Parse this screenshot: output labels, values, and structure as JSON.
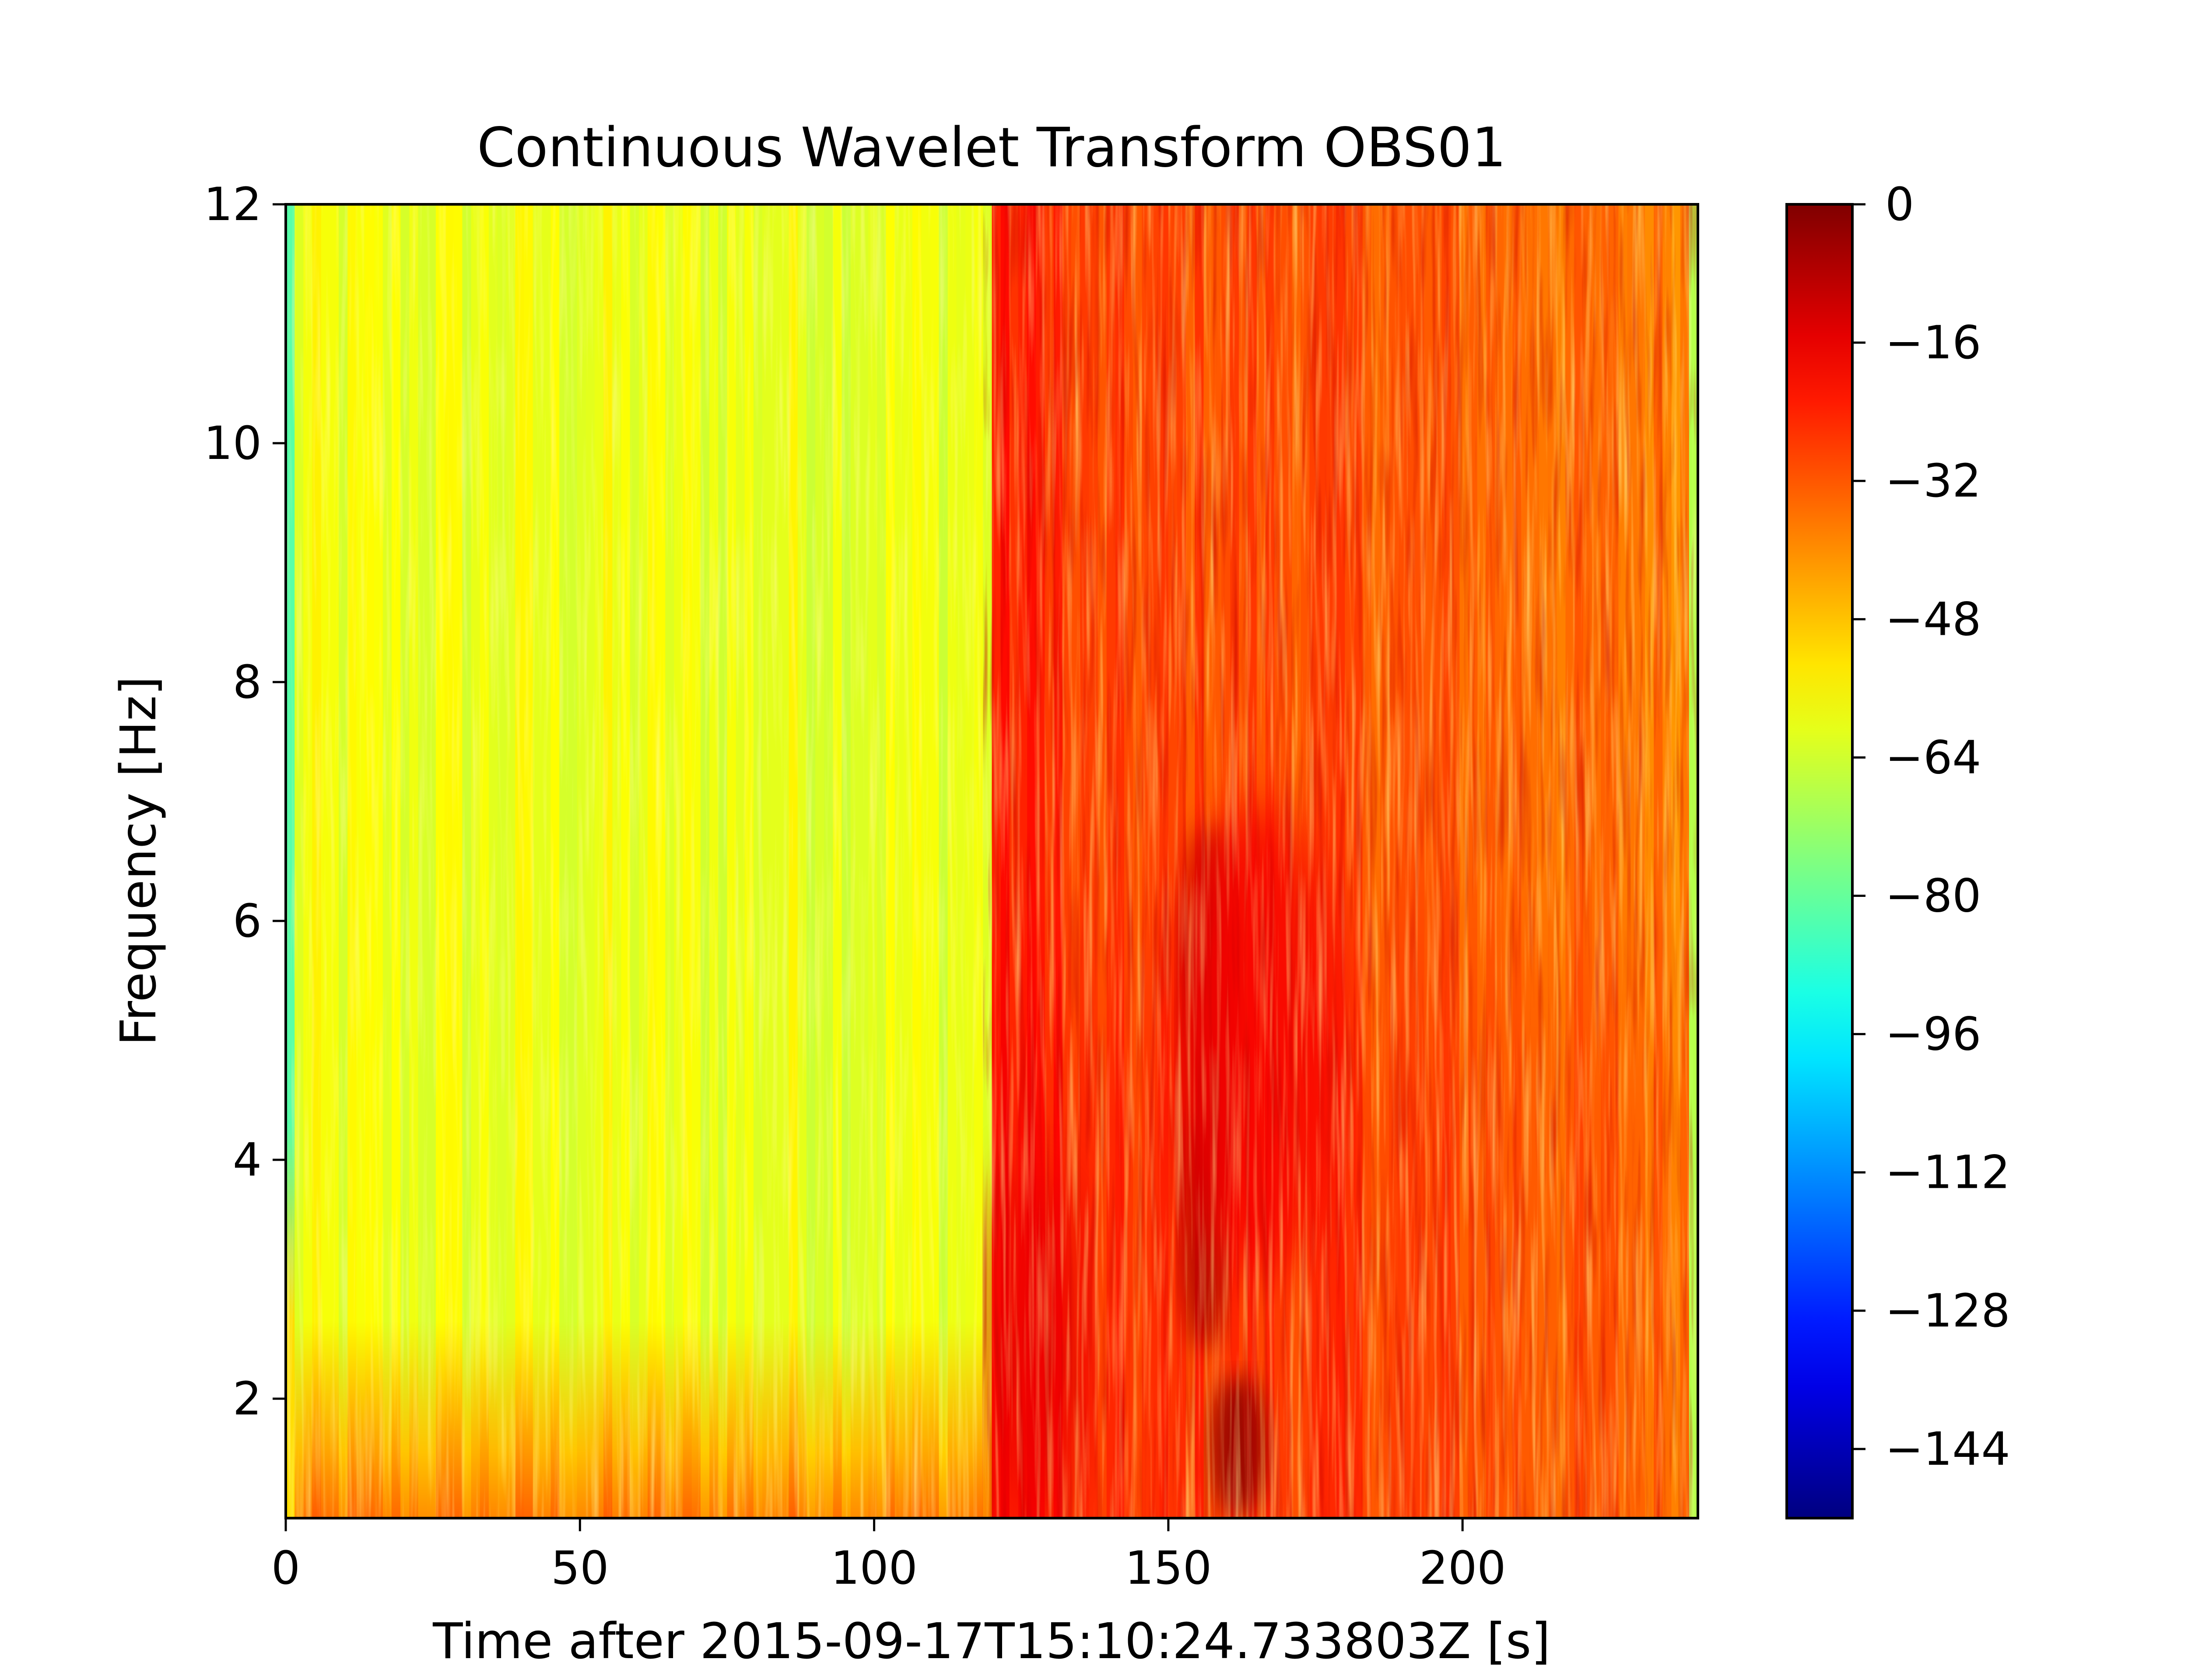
{
  "chart_data": {
    "type": "heatmap",
    "title": "Continuous Wavelet Transform OBS01",
    "xlabel": "Time after 2015-09-17T15:10:24.733803Z [s]",
    "ylabel": "Frequency [Hz]",
    "xlim": [
      0,
      240
    ],
    "ylim": [
      1,
      12
    ],
    "x_ticks": [
      0,
      50,
      100,
      150,
      200
    ],
    "y_ticks": [
      2,
      4,
      6,
      8,
      10,
      12
    ],
    "colormap": "jet",
    "colorbar": {
      "range": [
        -152,
        0
      ],
      "ticks": [
        0,
        -16,
        -32,
        -48,
        -64,
        -80,
        -96,
        -112,
        -128,
        -144
      ],
      "tick_labels": [
        "0",
        "−16",
        "−32",
        "−48",
        "−64",
        "−80",
        "−96",
        "−112",
        "−128",
        "−144"
      ]
    },
    "x_tick_labels": [
      "0",
      "50",
      "100",
      "150",
      "200"
    ],
    "y_tick_labels": [
      "2",
      "4",
      "6",
      "8",
      "10",
      "12"
    ],
    "grid": false,
    "approx_regions": [
      {
        "time_range": [
          0,
          120
        ],
        "freq_range": [
          1,
          12
        ],
        "typical_value": -60,
        "note": "background noise, about -60 (yellow-green), rising to about -40 below 2.5 Hz"
      },
      {
        "time_range": [
          120,
          240
        ],
        "freq_range": [
          1,
          12
        ],
        "typical_value": -28,
        "note": "signal onset at 120 s, about -20 to -35 (red-orange)"
      },
      {
        "time_range": [
          150,
          165
        ],
        "freq_range": [
          1,
          7
        ],
        "typical_value": -5,
        "note": "energy maximum near 155-163 s, about 0 (dark red)"
      }
    ]
  }
}
